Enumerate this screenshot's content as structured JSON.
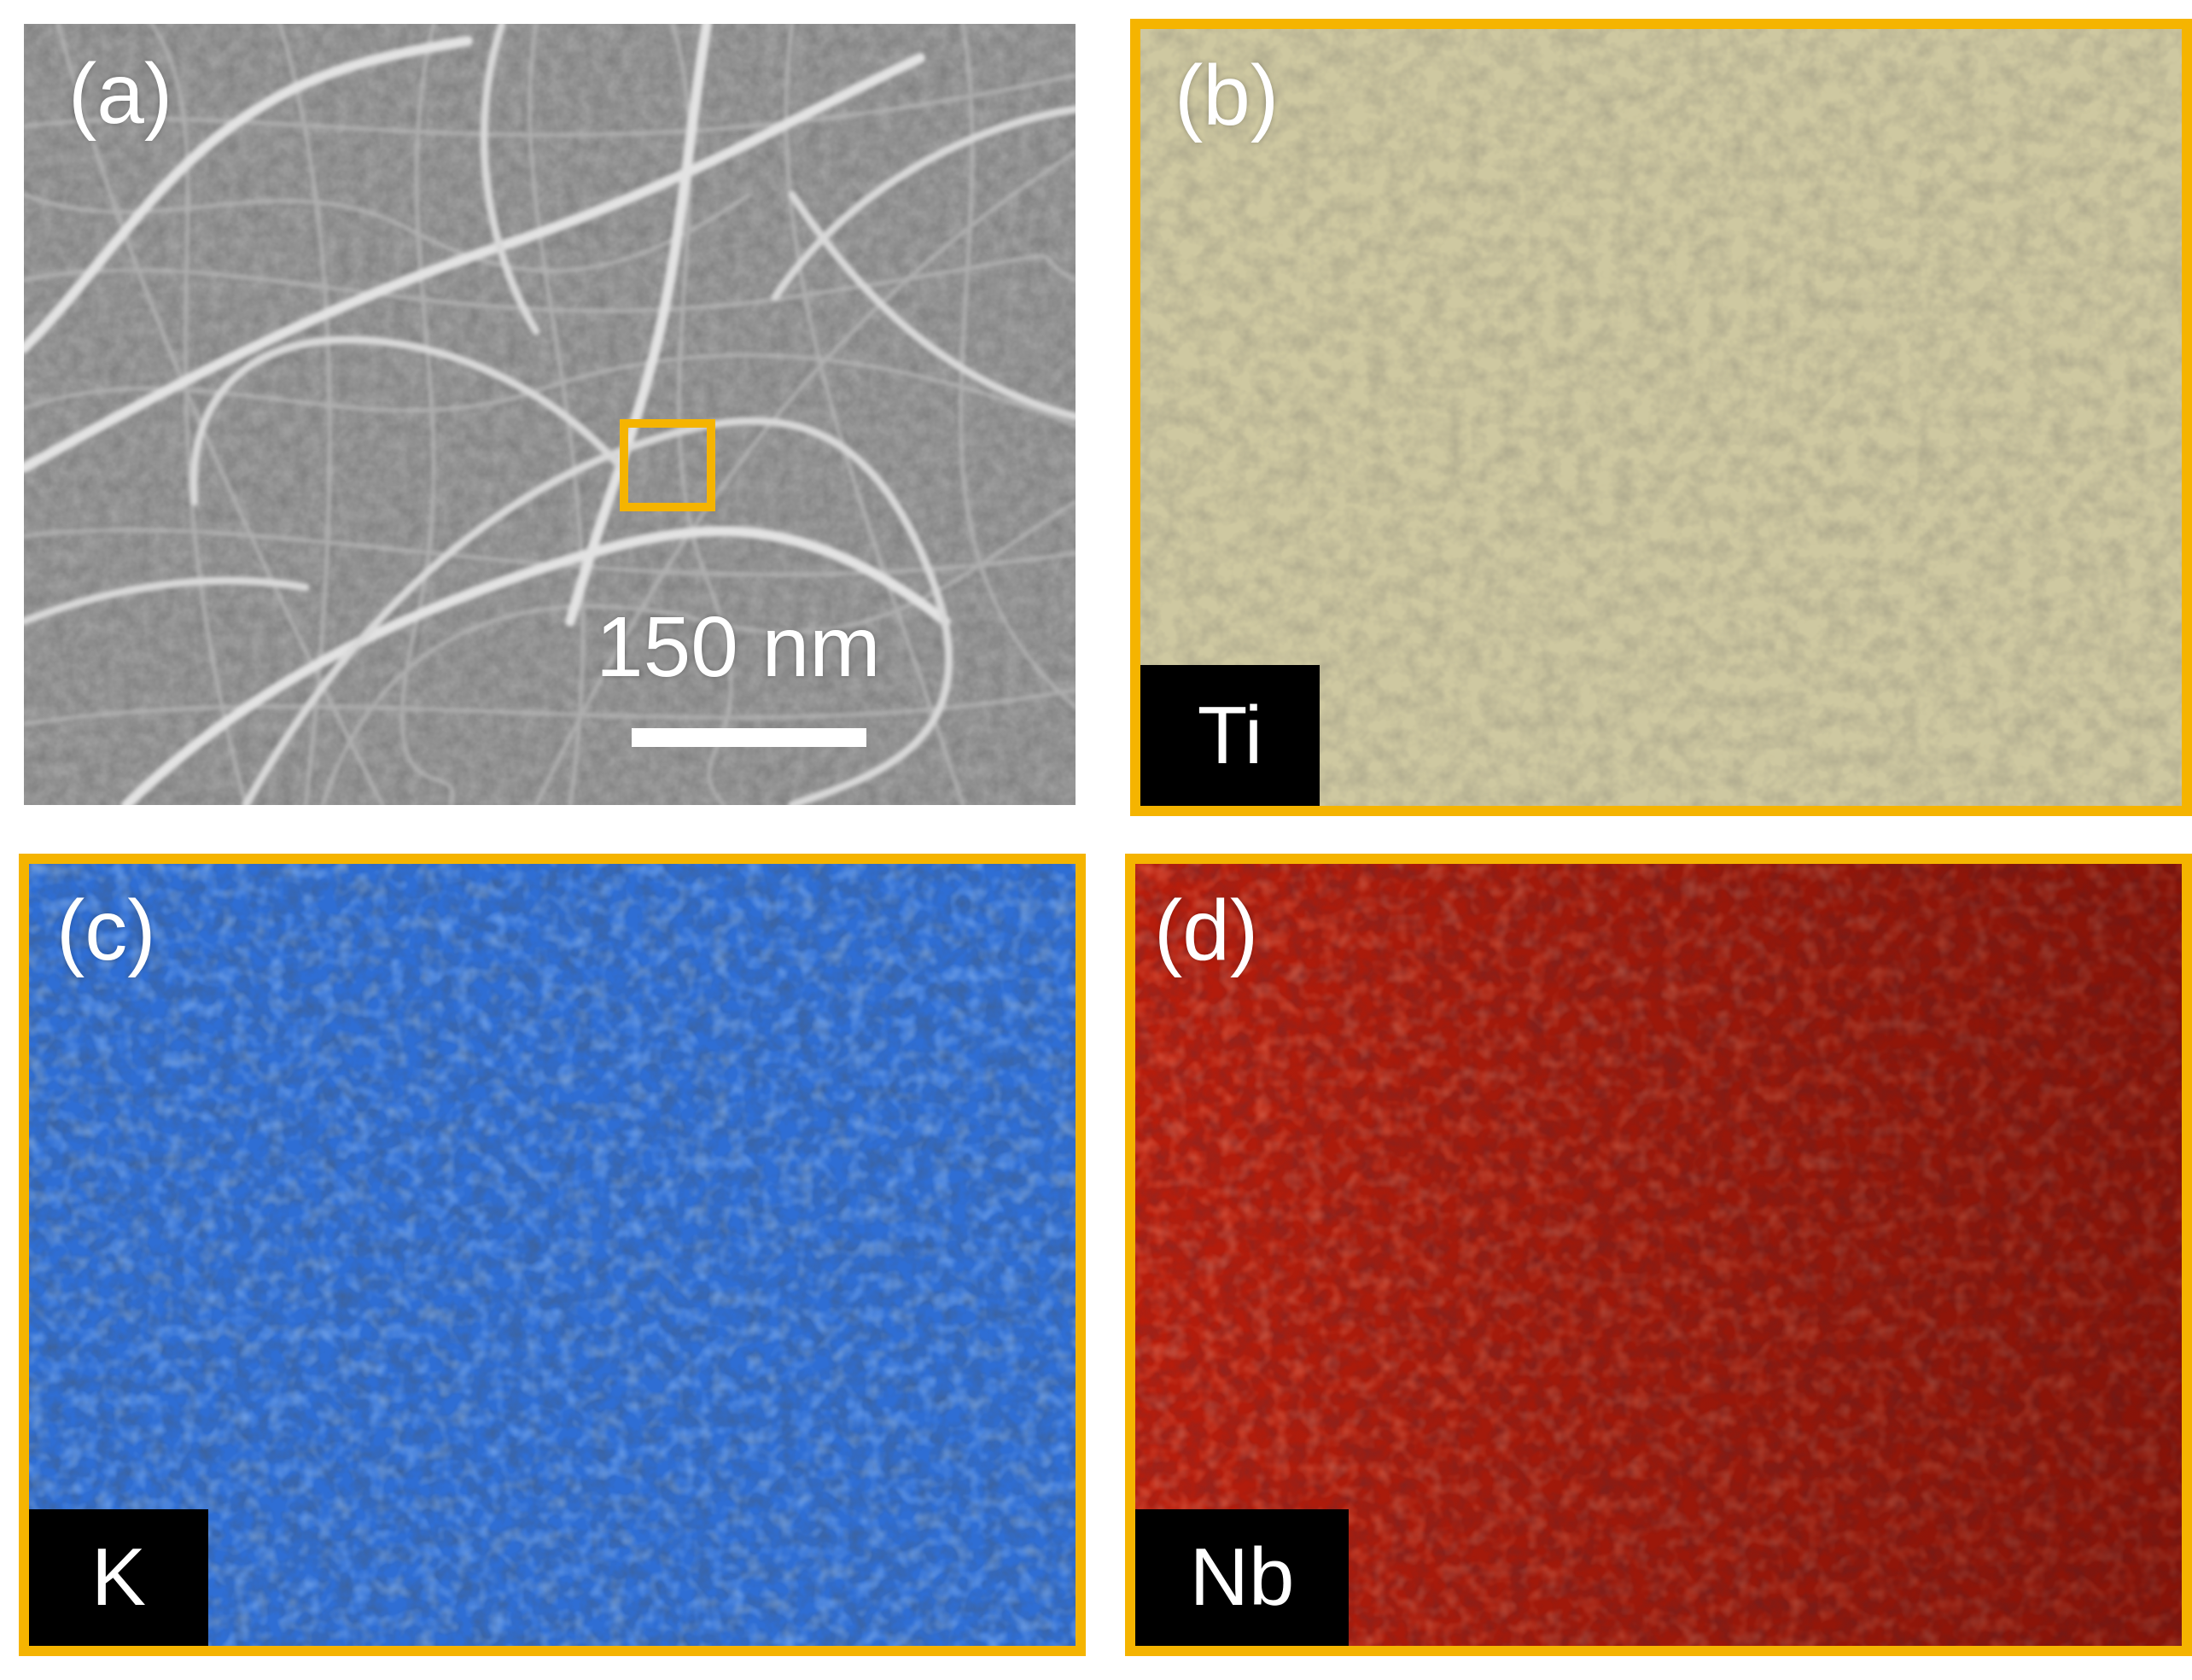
{
  "panels": {
    "a": {
      "label": "(a)",
      "scale_bar": "150 nm"
    },
    "b": {
      "label": "(b)",
      "element": "Ti"
    },
    "c": {
      "label": "(c)",
      "element": "K"
    },
    "d": {
      "label": "(d)",
      "element": "Nb"
    }
  },
  "colors": {
    "highlight_frame": "#f5b400",
    "ti_map": "#c8c29a",
    "k_map": "#2f6fd6",
    "nb_map": "#c0200e",
    "sem_background": "#7f7f7f"
  }
}
